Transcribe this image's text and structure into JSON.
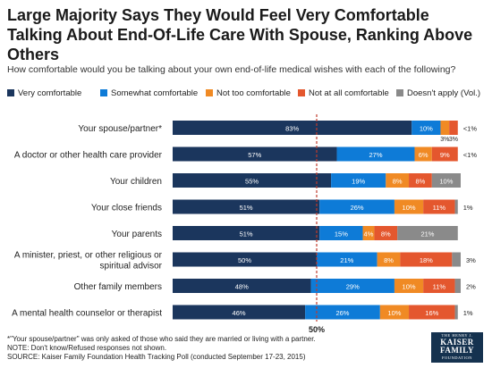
{
  "title": "Large Majority Says They Would Feel Very Comfortable Talking About End-Of-Life Care With Spouse, Ranking Above Others",
  "subtitle": "How comfortable would you be talking about your own end-of-life medical wishes with each of the following?",
  "footnotes": [
    "*\"Your spouse/partner\" was only asked of those who said they are married or living with a partner.",
    "NOTE: Don't know/Refused responses not shown.",
    "SOURCE: Kaiser Family Foundation Health Tracking Poll (conducted September 17-23, 2015)"
  ],
  "logo": {
    "line1": "THE HENRY J.",
    "line2": "KAISER",
    "line3": "FAMILY",
    "line4": "FOUNDATION"
  },
  "colors": {
    "very": "#1b365d",
    "somewhat": "#0e7bd7",
    "not_too": "#f08a24",
    "not_at_all": "#e4572e",
    "doesnt_apply": "#8a8a8a"
  },
  "chart_data": {
    "type": "bar",
    "orientation": "horizontal-stacked",
    "reference_line": {
      "value": 50,
      "label": "50%"
    },
    "series": [
      {
        "name": "Very comfortable",
        "color": "#1b365d"
      },
      {
        "name": "Somewhat comfortable",
        "color": "#0e7bd7"
      },
      {
        "name": "Not too comfortable",
        "color": "#f08a24"
      },
      {
        "name": "Not at all comfortable",
        "color": "#e4572e"
      },
      {
        "name": "Doesn't apply (Vol.)",
        "color": "#8a8a8a"
      }
    ],
    "categories": [
      {
        "label": "Your spouse/partner*",
        "values": [
          83,
          10,
          3,
          3,
          null
        ],
        "labels": [
          "83%",
          "10%",
          "3%",
          "3%",
          ""
        ],
        "below_labels": [
          false,
          false,
          true,
          true,
          false
        ],
        "trailing": "<1%"
      },
      {
        "label": "A doctor or other health care provider",
        "values": [
          57,
          27,
          6,
          9,
          null
        ],
        "labels": [
          "57%",
          "27%",
          "6%",
          "9%",
          ""
        ],
        "below_labels": [
          false,
          false,
          false,
          false,
          false
        ],
        "trailing": "<1%"
      },
      {
        "label": "Your children",
        "values": [
          55,
          19,
          8,
          8,
          10
        ],
        "labels": [
          "55%",
          "19%",
          "8%",
          "8%",
          "10%"
        ],
        "below_labels": [
          false,
          false,
          false,
          false,
          false
        ],
        "trailing": ""
      },
      {
        "label": "Your close friends",
        "values": [
          51,
          26,
          10,
          11,
          1
        ],
        "labels": [
          "51%",
          "26%",
          "10%",
          "11%",
          ""
        ],
        "below_labels": [
          false,
          false,
          false,
          false,
          false
        ],
        "trailing": "1%"
      },
      {
        "label": "Your parents",
        "values": [
          51,
          15,
          4,
          8,
          21
        ],
        "labels": [
          "51%",
          "15%",
          "4%",
          "8%",
          "21%"
        ],
        "below_labels": [
          false,
          false,
          false,
          false,
          false
        ],
        "trailing": ""
      },
      {
        "label": "A minister, priest, or other religious or spiritual advisor",
        "label_lines": [
          "A minister, priest, or other religious or",
          "spiritual advisor"
        ],
        "values": [
          50,
          21,
          8,
          18,
          3
        ],
        "labels": [
          "50%",
          "21%",
          "8%",
          "18%",
          ""
        ],
        "below_labels": [
          false,
          false,
          false,
          false,
          false
        ],
        "trailing": "3%"
      },
      {
        "label": "Other family members",
        "values": [
          48,
          29,
          10,
          11,
          2
        ],
        "labels": [
          "48%",
          "29%",
          "10%",
          "11%",
          ""
        ],
        "below_labels": [
          false,
          false,
          false,
          false,
          false
        ],
        "trailing": "2%"
      },
      {
        "label": "A mental health counselor or therapist",
        "values": [
          46,
          26,
          10,
          16,
          1
        ],
        "labels": [
          "46%",
          "26%",
          "10%",
          "16%",
          ""
        ],
        "below_labels": [
          false,
          false,
          false,
          false,
          false
        ],
        "trailing": "1%"
      }
    ]
  }
}
